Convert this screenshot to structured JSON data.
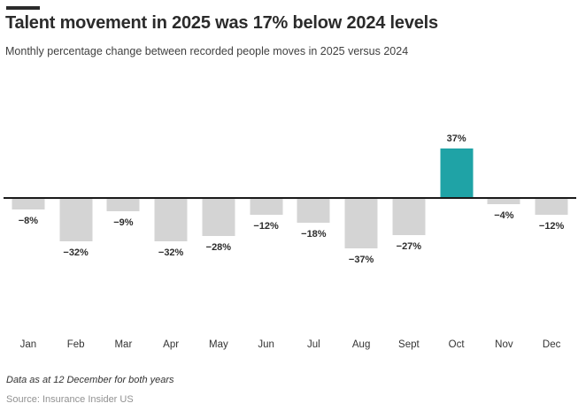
{
  "header": {
    "title": "Talent movement in 2025 was 17% below 2024 levels",
    "subtitle": "Monthly percentage change between recorded people moves in 2025 versus 2024"
  },
  "chart_data": {
    "type": "bar",
    "title": "Talent movement in 2025 was 17% below 2024 levels",
    "subtitle": "Monthly percentage change between recorded people moves in 2025 versus 2024",
    "categories": [
      "Jan",
      "Feb",
      "Mar",
      "Apr",
      "May",
      "Jun",
      "Jul",
      "Aug",
      "Sept",
      "Oct",
      "Nov",
      "Dec"
    ],
    "values": [
      -8,
      -32,
      -9,
      -32,
      -28,
      -12,
      -18,
      -37,
      -27,
      37,
      -4,
      -12
    ],
    "data_labels": [
      "−8%",
      "−32%",
      "−9%",
      "−32%",
      "−28%",
      "−12%",
      "−18%",
      "−37%",
      "−27%",
      "37%",
      "−4%",
      "−12%"
    ],
    "xlabel": "",
    "ylabel": "",
    "ylim": [
      -45,
      45
    ],
    "grid": false,
    "legend": "none",
    "baseline": 0,
    "highlight_index": 9,
    "colors": {
      "bar_negative": "#d4d4d4",
      "bar_positive": "#1fa3a6",
      "zero_line": "#1a1a1a",
      "label_text": "#2d2d2d"
    }
  },
  "footer": {
    "note": "Data as at 12 December for both years",
    "source": "Source: Insurance Insider US"
  }
}
